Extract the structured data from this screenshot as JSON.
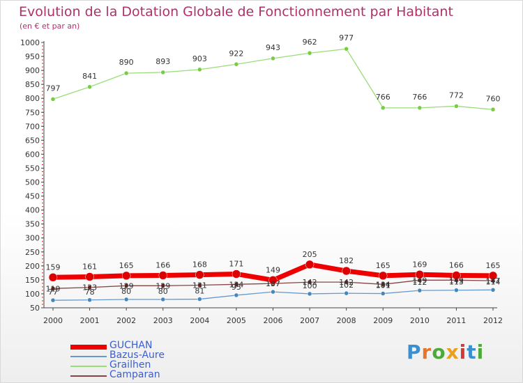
{
  "title": "Evolution de la Dotation Globale de Fonctionnement par Habitant",
  "subtitle": "(en € et par an)",
  "logo": "Proxiti",
  "chart_data": {
    "type": "line",
    "title": "Evolution de la Dotation Globale de Fonctionnement par Habitant",
    "subtitle": "(en € et par an)",
    "xlabel": "",
    "ylabel": "",
    "ylim": [
      50,
      1000
    ],
    "yticks": [
      50,
      100,
      150,
      200,
      250,
      300,
      350,
      400,
      450,
      500,
      550,
      600,
      650,
      700,
      750,
      800,
      850,
      900,
      950,
      1000
    ],
    "grid": false,
    "legend": "bottom-left",
    "x": [
      "2000",
      "2001",
      "2002",
      "2003",
      "2004",
      "2005",
      "2006",
      "2007",
      "2008",
      "2009",
      "2010",
      "2011",
      "2012"
    ],
    "series": [
      {
        "name": "Grailhen",
        "color": "#99dd77",
        "values": [
          797,
          841,
          890,
          893,
          903,
          922,
          943,
          962,
          977,
          766,
          766,
          772,
          760
        ]
      },
      {
        "name": "Bazus-Aure",
        "color": "#6699cc",
        "values": [
          77,
          78,
          80,
          80,
          81,
          95,
          107,
          100,
          102,
          101,
          112,
          113,
          114
        ]
      },
      {
        "name": "Camparan",
        "color": "#884444",
        "values": [
          119,
          123,
          129,
          129,
          131,
          134,
          137,
          142,
          142,
          134,
          149,
          149,
          147
        ]
      },
      {
        "name": "GUCHAN",
        "color": "#ee0000",
        "values": [
          159,
          161,
          165,
          166,
          168,
          171,
          149,
          205,
          182,
          165,
          169,
          166,
          165
        ]
      }
    ]
  }
}
